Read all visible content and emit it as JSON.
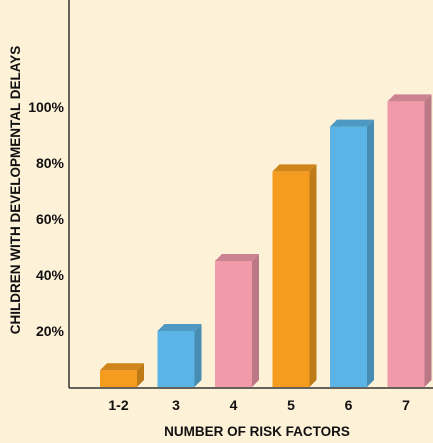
{
  "chart_data": {
    "type": "bar",
    "categories": [
      "1-2",
      "3",
      "4",
      "5",
      "6",
      "7"
    ],
    "values": [
      6,
      20,
      45,
      77,
      93,
      102
    ],
    "bar_colors": [
      "#f59c1f",
      "#5bb4e6",
      "#f09aaa",
      "#f59c1f",
      "#5bb4e6",
      "#f09aaa"
    ],
    "xlabel": "NUMBER OF RISK FACTORS",
    "ylabel": "CHILDREN WITH DEVELOPMENTAL DELAYS",
    "ylim": [
      0,
      100
    ],
    "yticks": [
      {
        "value": 20,
        "label": "20%"
      },
      {
        "value": 40,
        "label": "40%"
      },
      {
        "value": 60,
        "label": "60%"
      },
      {
        "value": 80,
        "label": "80%"
      },
      {
        "value": 100,
        "label": "100%"
      }
    ],
    "grid": false,
    "style": "3d"
  }
}
